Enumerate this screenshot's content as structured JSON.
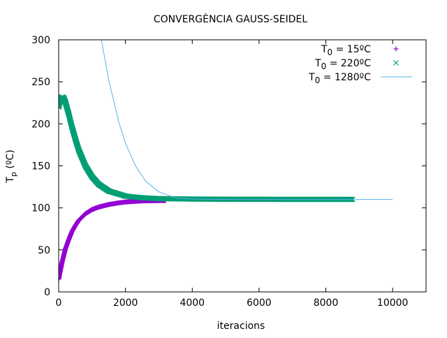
{
  "chart_data": {
    "type": "scatter",
    "title": "CONVERGÈNCIA GAUSS-SEIDEL",
    "xlabel": "iteracions",
    "ylabel": {
      "main": "T",
      "sub": "p",
      "rest": " (ºC)"
    },
    "xlim": [
      0,
      11000
    ],
    "ylim": [
      0,
      300
    ],
    "xticks": [
      0,
      2000,
      4000,
      6000,
      8000,
      10000
    ],
    "yticks": [
      0,
      50,
      100,
      150,
      200,
      250,
      300
    ],
    "grid": false,
    "legend_position": "top-right",
    "series": [
      {
        "name": {
          "main": "T",
          "sub": "0",
          "rest": " = 15ºC"
        },
        "style": "points",
        "marker": "plus",
        "color": "#9400d3",
        "x": [
          0,
          100,
          200,
          300,
          400,
          500,
          600,
          800,
          1000,
          1200,
          1500,
          1800,
          2000,
          2500,
          3000,
          3200
        ],
        "y": [
          15,
          35,
          51,
          62,
          72,
          79,
          85,
          93,
          98,
          101,
          104,
          106,
          107,
          108.3,
          108.7,
          108.8
        ]
      },
      {
        "name": {
          "main": "T",
          "sub": "0",
          "rest": " = 220ºC"
        },
        "style": "points",
        "marker": "cross",
        "color": "#009e73",
        "x": [
          0,
          50,
          100,
          150,
          200,
          300,
          400,
          500,
          600,
          800,
          1000,
          1200,
          1500,
          2000,
          2500,
          3000,
          4000,
          5000,
          6000,
          7000,
          8000,
          8800
        ],
        "y": [
          220,
          228,
          232,
          231,
          226,
          212,
          196,
          182,
          169,
          150,
          137,
          128,
          120,
          114,
          112,
          111,
          110.5,
          110.3,
          110.2,
          110.1,
          110.1,
          110.1
        ]
      },
      {
        "name": {
          "main": "T",
          "sub": "0",
          "rest": " = 1280ºC"
        },
        "style": "line",
        "color": "#56b4e9",
        "x": [
          1280,
          1500,
          1800,
          2000,
          2300,
          2600,
          3000,
          3500,
          4000,
          4500,
          5000,
          6000,
          7000,
          8000,
          9000,
          10000
        ],
        "y": [
          300,
          252,
          202,
          177,
          150,
          132,
          119,
          112,
          110.5,
          110.2,
          110.1,
          110,
          110,
          110,
          110,
          110
        ]
      }
    ]
  }
}
